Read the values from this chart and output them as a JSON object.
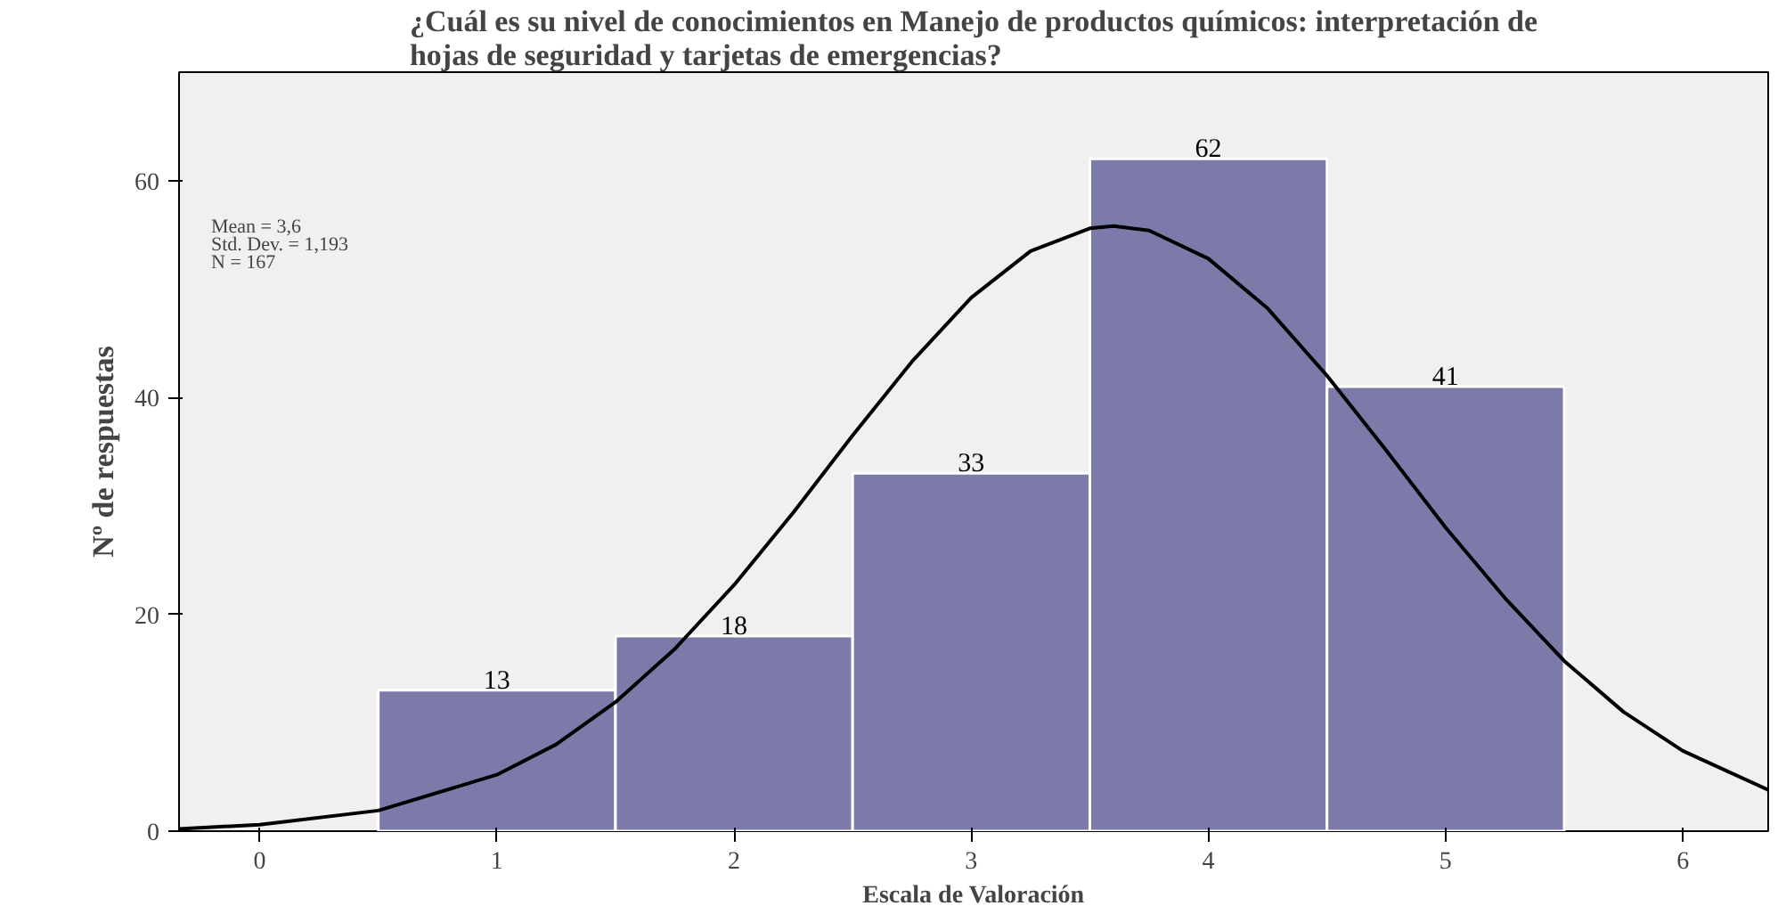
{
  "chart_data": {
    "type": "histogram",
    "title": "¿Cuál es su nivel de conocimientos en Manejo de productos químicos: interpretación de\nhojas de seguridad y tarjetas de emergencias?",
    "xlabel": "Escala de Valoración",
    "ylabel": "Nº de respuestas",
    "annotations": [
      "Mean = 3,6",
      "Std. Dev. = 1,193",
      "N = 167"
    ],
    "bins": [
      0.5,
      1.5,
      2.5,
      3.5,
      4.5,
      5.5
    ],
    "values": [
      13,
      18,
      33,
      62,
      41
    ],
    "color": "#7b7aa9",
    "value_labels": [
      "13",
      "18",
      "33",
      "62",
      "41"
    ],
    "series": [
      {
        "type": "line",
        "color": "#000000",
        "x": [
          -0.34,
          0,
          0.5,
          1,
          1.25,
          1.5,
          1.75,
          2,
          2.25,
          2.5,
          2.75,
          3,
          3.25,
          3.5,
          3.6,
          3.75,
          4,
          4.25,
          4.5,
          4.75,
          5,
          5.25,
          5.5,
          5.75,
          6,
          6.36
        ],
        "values": [
          0.2,
          0.6,
          1.9,
          5.2,
          8,
          11.9,
          16.8,
          22.7,
          29.4,
          36.5,
          43.3,
          49.2,
          53.5,
          55.6,
          55.8,
          55.4,
          52.8,
          48.2,
          42,
          35.1,
          28,
          21.5,
          15.7,
          11,
          7.4,
          3.8
        ]
      }
    ],
    "xlim": [
      -0.34,
      6.36
    ],
    "ylim": [
      0,
      70
    ],
    "xticks": [
      0,
      1,
      2,
      3,
      4,
      5,
      6
    ],
    "yticks": [
      0,
      20,
      40,
      60
    ],
    "grid": false
  }
}
